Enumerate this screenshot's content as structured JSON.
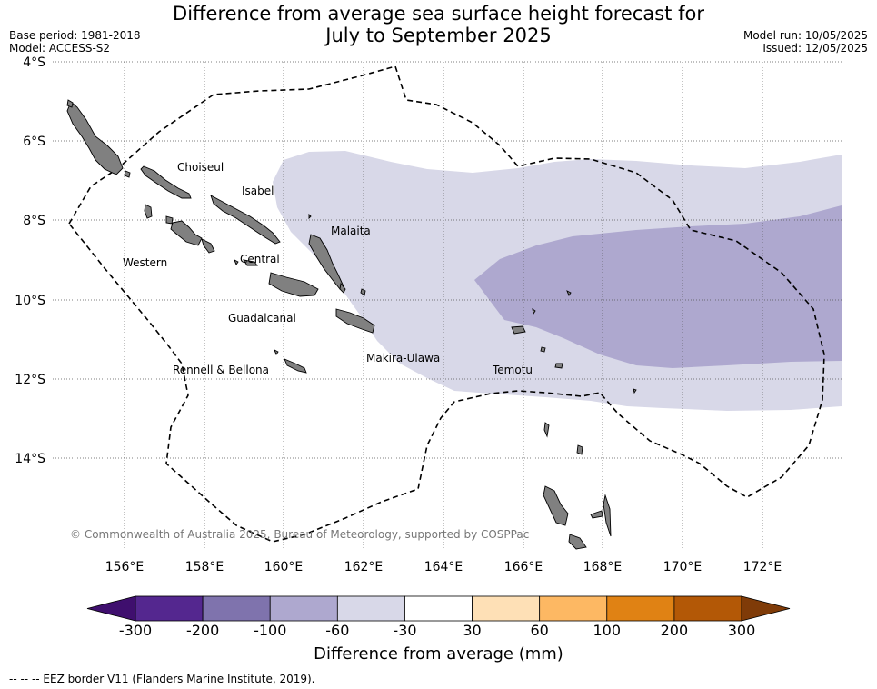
{
  "title_line1": "Difference from average sea surface height forecast for",
  "title_line2": "July to September 2025",
  "base_period": "Base period: 1981-2018",
  "model": "Model: ACCESS-S2",
  "model_run": "Model run: 10/05/2025",
  "issued": "Issued: 12/05/2025",
  "lat_labels": [
    "4°S",
    "6°S",
    "8°S",
    "10°S",
    "12°S",
    "14°S"
  ],
  "lon_labels": [
    "156°E",
    "158°E",
    "160°E",
    "162°E",
    "164°E",
    "166°E",
    "168°E",
    "170°E",
    "172°E"
  ],
  "provinces": {
    "choiseul": "Choiseul",
    "isabel": "Isabel",
    "malaita": "Malaita",
    "western": "Western",
    "central": "Central",
    "guadalcanal": "Guadalcanal",
    "makira_ulawa": "Makira-Ulawa",
    "temotu": "Temotu",
    "rennell_bellona": "Rennell & Bellona"
  },
  "copyright": "© Commonwealth of Australia 2025, Bureau of Meteorology, supported by COSPPac",
  "colorbar": {
    "title": "Difference from average (mm)",
    "ticks": [
      "-300",
      "-200",
      "-100",
      "-60",
      "-30",
      "30",
      "60",
      "100",
      "200",
      "300"
    ],
    "colors": [
      "#3f0f6e",
      "#54278f",
      "#7f73ad",
      "#aea8cf",
      "#d8d8e8",
      "#ffffff",
      "#fee0b6",
      "#fdb863",
      "#e08214",
      "#b35806",
      "#7f3b08"
    ]
  },
  "footnote": "--  --  -- EEZ border V11 (Flanders Marine Institute, 2019)."
}
